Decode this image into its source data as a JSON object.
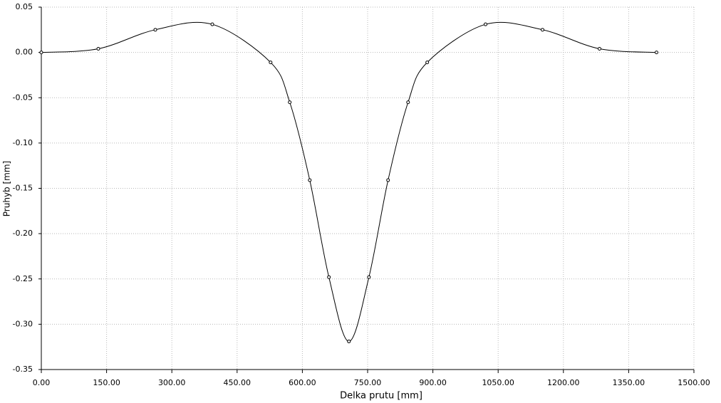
{
  "chart_data": {
    "type": "line",
    "x_label": "Delka prutu [mm]",
    "y_label": "Pruhyb [mm]",
    "x": [
      0,
      131,
      262,
      393,
      527,
      571,
      617,
      661,
      707,
      753,
      797,
      843,
      887,
      1021,
      1152,
      1283,
      1414
    ],
    "values": [
      0,
      0.004,
      0.025,
      0.031,
      -0.011,
      -0.055,
      -0.141,
      -0.248,
      -0.319,
      -0.248,
      -0.141,
      -0.055,
      -0.011,
      0.031,
      0.025,
      0.004,
      0
    ],
    "color": "#000000",
    "xlim": [
      0,
      1500
    ],
    "xticks": [
      {
        "value": 0,
        "label": "0.00"
      },
      {
        "value": 150,
        "label": "150.00"
      },
      {
        "value": 300,
        "label": "300.00"
      },
      {
        "value": 450,
        "label": "450.00"
      },
      {
        "value": 600,
        "label": "600.00"
      },
      {
        "value": 750,
        "label": "750.00"
      },
      {
        "value": 900,
        "label": "900.00"
      },
      {
        "value": 1050,
        "label": "1050.00"
      },
      {
        "value": 1200,
        "label": "1200.00"
      },
      {
        "value": 1350,
        "label": "1350.00"
      },
      {
        "value": 1500,
        "label": "1500.00"
      }
    ],
    "ylim": [
      -0.35,
      0.05
    ],
    "yticks": [
      0.05,
      {
        "value": 0,
        "label": "0.00"
      },
      -0.05,
      {
        "value": -0.1,
        "label": "-0.10"
      },
      -0.15,
      {
        "value": -0.2,
        "label": "-0.20"
      },
      -0.25,
      {
        "value": -0.3,
        "label": "-0.30"
      },
      -0.35
    ],
    "grid": true
  }
}
